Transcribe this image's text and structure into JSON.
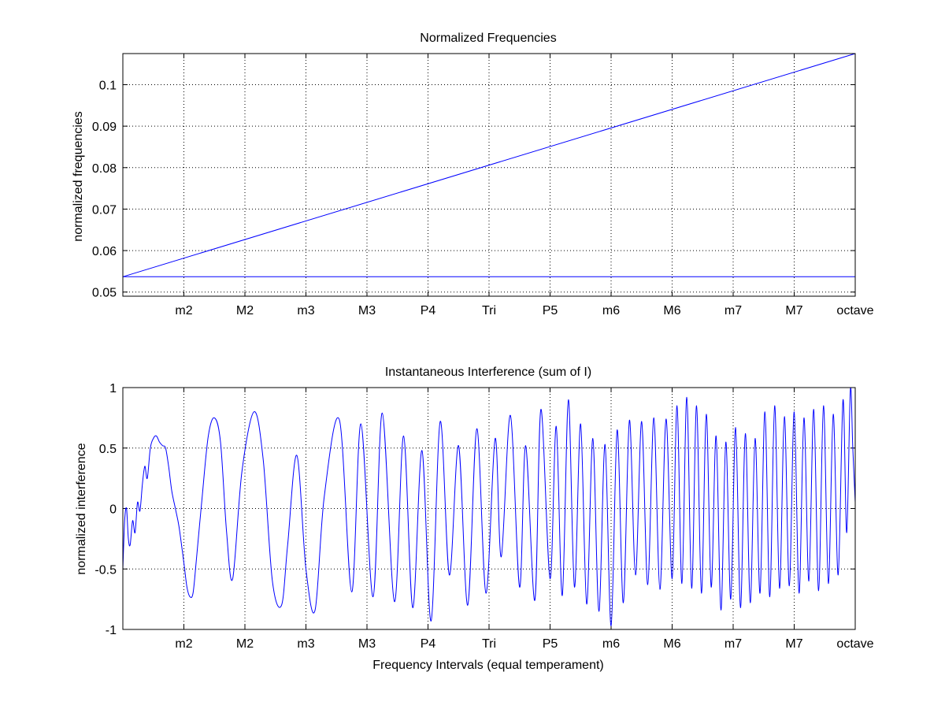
{
  "chart_data": [
    {
      "type": "line",
      "title": "Normalized Frequencies",
      "xlabel": "",
      "ylabel": "normalized frequencies",
      "categories": [
        "m2",
        "M2",
        "m3",
        "M3",
        "P4",
        "Tri",
        "P5",
        "m6",
        "M6",
        "m7",
        "M7",
        "octave"
      ],
      "ylim": [
        0.049,
        0.1075
      ],
      "yticks": [
        "0.05",
        "0.06",
        "0.07",
        "0.08",
        "0.09",
        "0.1"
      ],
      "grid": true,
      "series": [
        {
          "x": [
            0,
            12
          ],
          "values": [
            0.0537,
            0.1075
          ]
        },
        {
          "x": [
            0,
            12
          ],
          "values": [
            0.0537,
            0.0537
          ]
        }
      ],
      "color": "#0000ff"
    },
    {
      "type": "line",
      "title": "Instantaneous Interference (sum of I)",
      "xlabel": "Frequency Intervals (equal temperament)",
      "ylabel": "normalized interference",
      "categories": [
        "m2",
        "M2",
        "m3",
        "M3",
        "P4",
        "Tri",
        "P5",
        "m6",
        "M6",
        "m7",
        "M7",
        "octave"
      ],
      "ylim": [
        -1,
        1
      ],
      "yticks": [
        "-1",
        "-0.5",
        "0",
        "0.5",
        "1"
      ],
      "grid": true,
      "series": [
        {
          "x": [
            0,
            0.03,
            0.06,
            0.09,
            0.12,
            0.16,
            0.2,
            0.24,
            0.28,
            0.32,
            0.36,
            0.4,
            0.45,
            0.5,
            0.55,
            0.6,
            0.65,
            0.7,
            0.75,
            0.8,
            0.86,
            0.92,
            1.0,
            1.05,
            1.1,
            1.15,
            1.2,
            1.3,
            1.4,
            1.5,
            1.6,
            1.7,
            1.8,
            1.95,
            2.15,
            2.3,
            2.45,
            2.6,
            2.7,
            2.85,
            3.0,
            3.15,
            3.3,
            3.55,
            3.75,
            3.9,
            4.1,
            4.25,
            4.45,
            4.6,
            4.75,
            4.9,
            5.05,
            5.2,
            5.35,
            5.5,
            5.65,
            5.8,
            5.95,
            6.1,
            6.2,
            6.35,
            6.5,
            6.6,
            6.75,
            6.85,
            7.0,
            7.1,
            7.2,
            7.3,
            7.4,
            7.5,
            7.6,
            7.7,
            7.8,
            7.9,
            8.0,
            8.1,
            8.2,
            8.3,
            8.4,
            8.5,
            8.6,
            8.7,
            8.8,
            8.9,
            9.0,
            9.08,
            9.16,
            9.24,
            9.32,
            9.4,
            9.48,
            9.56,
            9.64,
            9.72,
            9.8,
            9.88,
            9.96,
            10.04,
            10.12,
            10.2,
            10.28,
            10.36,
            10.44,
            10.52,
            10.6,
            10.68,
            10.76,
            10.84,
            10.92,
            11.0,
            11.08,
            11.16,
            11.24,
            11.32,
            11.4,
            11.48,
            11.56,
            11.64,
            11.72,
            11.8,
            11.86,
            11.92,
            11.96,
            12.0
          ],
          "values": [
            -0.5,
            -0.1,
            0.0,
            -0.25,
            -0.3,
            -0.1,
            -0.2,
            0.05,
            -0.02,
            0.2,
            0.35,
            0.25,
            0.5,
            0.58,
            0.6,
            0.55,
            0.52,
            0.5,
            0.35,
            0.15,
            0.0,
            -0.15,
            -0.45,
            -0.65,
            -0.73,
            -0.7,
            -0.45,
            0.1,
            0.6,
            0.75,
            0.55,
            -0.2,
            -0.58,
            0.3,
            0.8,
            0.4,
            -0.6,
            -0.8,
            -0.3,
            0.44,
            -0.5,
            -0.84,
            0.1,
            0.73,
            -0.69,
            0.7,
            -0.73,
            0.79,
            -0.77,
            0.6,
            -0.82,
            0.48,
            -0.93,
            0.72,
            -0.55,
            0.52,
            -0.8,
            0.66,
            -0.7,
            0.58,
            -0.4,
            0.77,
            -0.65,
            0.52,
            -0.76,
            0.82,
            -0.58,
            0.68,
            -0.72,
            0.9,
            -0.65,
            0.7,
            -0.79,
            0.58,
            -0.85,
            0.53,
            -0.97,
            0.65,
            -0.78,
            0.73,
            -0.55,
            0.72,
            -0.63,
            0.75,
            -0.67,
            0.74,
            -0.58,
            0.85,
            -0.62,
            0.92,
            -0.66,
            0.85,
            -0.7,
            0.78,
            -0.65,
            0.6,
            -0.84,
            0.55,
            -0.75,
            0.67,
            -0.82,
            0.62,
            -0.78,
            0.58,
            -0.7,
            0.8,
            -0.73,
            0.85,
            -0.66,
            0.76,
            -0.64,
            0.8,
            -0.7,
            0.75,
            -0.6,
            0.82,
            -0.68,
            0.85,
            -0.62,
            0.78,
            -0.55,
            0.9,
            -0.2,
            0.98,
            0.5,
            0.05
          ]
        }
      ],
      "color": "#0000ff"
    }
  ]
}
